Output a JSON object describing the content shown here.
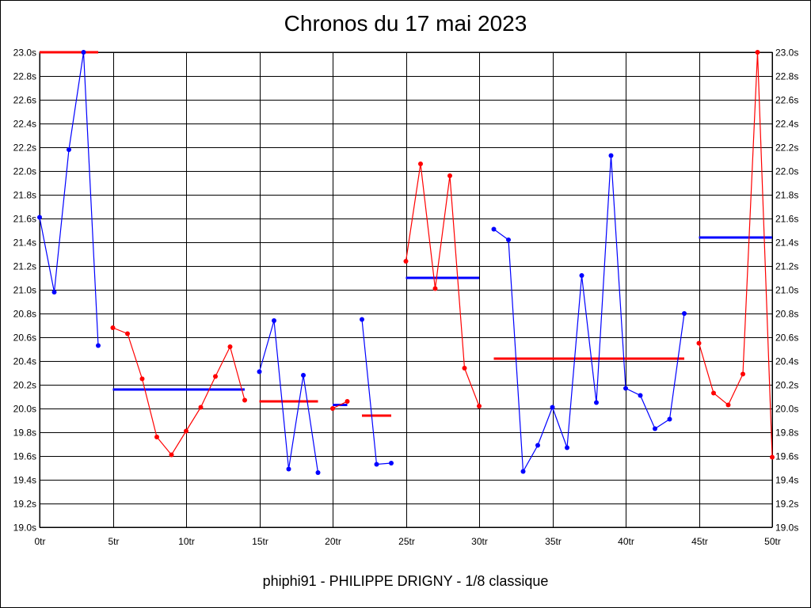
{
  "chart_data": {
    "type": "line",
    "title": "Chronos du 17 mai 2023",
    "subtitle": "phiphi91 - PHILIPPE DRIGNY - 1/8 classique",
    "xlabel": "",
    "ylabel": "",
    "xlim": [
      0,
      50
    ],
    "ylim": [
      19.0,
      23.0
    ],
    "grid": true,
    "x_ticks": [
      {
        "value": 0,
        "label": "0tr"
      },
      {
        "value": 5,
        "label": "5tr"
      },
      {
        "value": 10,
        "label": "10tr"
      },
      {
        "value": 15,
        "label": "15tr"
      },
      {
        "value": 20,
        "label": "20tr"
      },
      {
        "value": 25,
        "label": "25tr"
      },
      {
        "value": 30,
        "label": "30tr"
      },
      {
        "value": 35,
        "label": "35tr"
      },
      {
        "value": 40,
        "label": "40tr"
      },
      {
        "value": 45,
        "label": "45tr"
      },
      {
        "value": 50,
        "label": "50tr"
      }
    ],
    "y_ticks": [
      {
        "value": 23.0,
        "label": "23.0s"
      },
      {
        "value": 22.8,
        "label": "22.8s"
      },
      {
        "value": 22.6,
        "label": "22.6s"
      },
      {
        "value": 22.4,
        "label": "22.4s"
      },
      {
        "value": 22.2,
        "label": "22.2s"
      },
      {
        "value": 22.0,
        "label": "22.0s"
      },
      {
        "value": 21.8,
        "label": "21.8s"
      },
      {
        "value": 21.6,
        "label": "21.6s"
      },
      {
        "value": 21.4,
        "label": "21.4s"
      },
      {
        "value": 21.2,
        "label": "21.2s"
      },
      {
        "value": 21.0,
        "label": "21.0s"
      },
      {
        "value": 20.8,
        "label": "20.8s"
      },
      {
        "value": 20.6,
        "label": "20.6s"
      },
      {
        "value": 20.4,
        "label": "20.4s"
      },
      {
        "value": 20.2,
        "label": "20.2s"
      },
      {
        "value": 20.0,
        "label": "20.0s"
      },
      {
        "value": 19.8,
        "label": "19.8s"
      },
      {
        "value": 19.6,
        "label": "19.6s"
      },
      {
        "value": 19.4,
        "label": "19.4s"
      },
      {
        "value": 19.2,
        "label": "19.2s"
      },
      {
        "value": 19.0,
        "label": "19.0s"
      }
    ],
    "series": [
      {
        "color": "#0000ff",
        "points": [
          [
            0,
            21.61
          ],
          [
            1,
            20.98
          ],
          [
            2,
            22.18
          ],
          [
            3,
            23.0
          ],
          [
            4,
            20.53
          ]
        ]
      },
      {
        "color": "#ff0000",
        "points": [
          [
            5,
            20.68
          ],
          [
            6,
            20.63
          ],
          [
            7,
            20.25
          ],
          [
            8,
            19.76
          ],
          [
            9,
            19.61
          ],
          [
            10,
            19.81
          ],
          [
            11,
            20.01
          ],
          [
            12,
            20.27
          ],
          [
            13,
            20.52
          ],
          [
            14,
            20.07
          ]
        ]
      },
      {
        "color": "#0000ff",
        "points": [
          [
            15,
            20.31
          ],
          [
            16,
            20.74
          ],
          [
            17,
            19.49
          ],
          [
            18,
            20.28
          ],
          [
            19,
            19.46
          ]
        ]
      },
      {
        "color": "#ff0000",
        "points": [
          [
            20,
            20.0
          ],
          [
            21,
            20.06
          ]
        ]
      },
      {
        "color": "#0000ff",
        "points": [
          [
            22,
            20.75
          ],
          [
            23,
            19.53
          ],
          [
            24,
            19.54
          ]
        ]
      },
      {
        "color": "#ff0000",
        "points": [
          [
            25,
            21.24
          ],
          [
            26,
            22.06
          ],
          [
            27,
            21.01
          ],
          [
            28,
            21.96
          ],
          [
            29,
            20.34
          ],
          [
            30,
            20.02
          ]
        ]
      },
      {
        "color": "#0000ff",
        "points": [
          [
            31,
            21.51
          ],
          [
            32,
            21.42
          ],
          [
            33,
            19.47
          ],
          [
            34,
            19.69
          ],
          [
            35,
            20.01
          ],
          [
            36,
            19.67
          ],
          [
            37,
            21.12
          ],
          [
            38,
            20.05
          ],
          [
            39,
            22.13
          ],
          [
            40,
            20.17
          ],
          [
            41,
            20.11
          ],
          [
            42,
            19.83
          ],
          [
            43,
            19.91
          ],
          [
            44,
            20.8
          ]
        ]
      },
      {
        "color": "#ff0000",
        "points": [
          [
            45,
            20.55
          ],
          [
            46,
            20.13
          ],
          [
            47,
            20.03
          ],
          [
            48,
            20.29
          ],
          [
            49,
            23.0
          ],
          [
            50,
            19.59
          ]
        ]
      }
    ],
    "averages": [
      {
        "color": "#ff0000",
        "x": [
          0,
          4
        ],
        "y": 23.0
      },
      {
        "color": "#0000ff",
        "x": [
          5,
          14
        ],
        "y": 20.16
      },
      {
        "color": "#ff0000",
        "x": [
          15,
          19
        ],
        "y": 20.06
      },
      {
        "color": "#0000ff",
        "x": [
          20,
          21
        ],
        "y": 20.03
      },
      {
        "color": "#ff0000",
        "x": [
          22,
          24
        ],
        "y": 19.94
      },
      {
        "color": "#0000ff",
        "x": [
          25,
          30
        ],
        "y": 21.1
      },
      {
        "color": "#ff0000",
        "x": [
          31,
          44
        ],
        "y": 20.42
      },
      {
        "color": "#0000ff",
        "x": [
          45,
          50
        ],
        "y": 21.44
      }
    ]
  }
}
